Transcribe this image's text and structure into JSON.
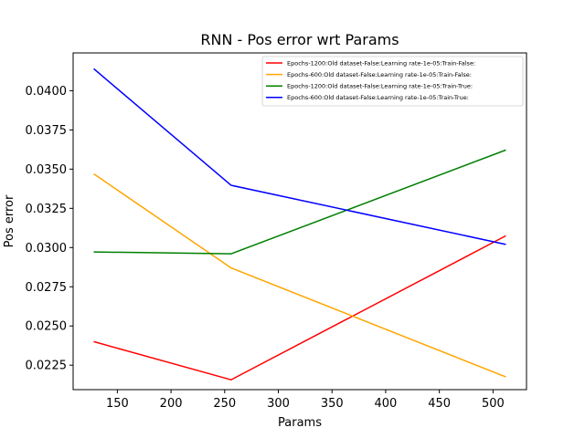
{
  "chart_data": {
    "type": "line",
    "title": "RNN - Pos error wrt Params",
    "xlabel": "Params",
    "ylabel": "Pos error",
    "x": [
      128,
      256,
      512
    ],
    "xlim": [
      108.8,
      531.2
    ],
    "ylim": [
      0.02094,
      0.04241
    ],
    "xticks": [
      150,
      200,
      250,
      300,
      350,
      400,
      450,
      500
    ],
    "yticks": [
      0.0225,
      0.025,
      0.0275,
      0.03,
      0.0325,
      0.035,
      0.0375,
      0.04
    ],
    "ytick_labels": [
      "0.0225",
      "0.0250",
      "0.0275",
      "0.0300",
      "0.0325",
      "0.0350",
      "0.0375",
      "0.0400"
    ],
    "grid": false,
    "legend_position": "top-right",
    "series": [
      {
        "name": "Epochs-1200:Old dataset-False:Learning rate-1e-05:Train-False:",
        "color": "#ff0000",
        "values": [
          0.024,
          0.02157,
          0.03075
        ]
      },
      {
        "name": "Epochs-600:Old dataset-False:Learning rate-1e-05:Train-False:",
        "color": "#ffa500",
        "values": [
          0.0347,
          0.0287,
          0.02175
        ]
      },
      {
        "name": "Epochs-1200:Old dataset-False:Learning rate-1e-05:Train-True:",
        "color": "#008000",
        "values": [
          0.02972,
          0.0296,
          0.03622
        ]
      },
      {
        "name": "Epochs-600:Old dataset-False:Learning rate-1e-05:Train-True:",
        "color": "#0000ff",
        "values": [
          0.0414,
          0.03397,
          0.0302
        ]
      }
    ]
  }
}
